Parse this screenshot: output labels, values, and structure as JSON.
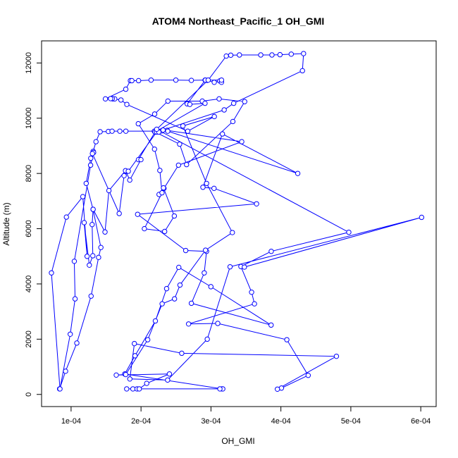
{
  "chart_data": {
    "type": "line",
    "title": "ATOM4 Northeast_Pacific_1 OH_GMI",
    "xlabel": "OH_GMI",
    "ylabel": "Altitude (m)",
    "xlim": [
      5.78e-05,
      0.000622
    ],
    "ylim": [
      -440,
      12800
    ],
    "x_ticks": [
      0.0001,
      0.0002,
      0.0003,
      0.0004,
      0.0005,
      0.0006
    ],
    "x_tick_labels": [
      "1e-04",
      "2e-04",
      "3e-04",
      "4e-04",
      "5e-04",
      "6e-04"
    ],
    "y_ticks": [
      0,
      2000,
      4000,
      6000,
      8000,
      10000,
      12000
    ],
    "y_tick_labels": [
      "0",
      "2000",
      "4000",
      "6000",
      "8000",
      "10000",
      "12000"
    ],
    "grid": false,
    "color": "#0000ff",
    "series": [
      {
        "points": [
          [
            8.36e-05,
            200
          ],
          [
            9.21e-05,
            840
          ],
          [
            0.0001082,
            1860
          ],
          [
            0.0001286,
            3560
          ],
          [
            0.0001393,
            4960
          ],
          [
            0.0001426,
            5320
          ],
          [
            0.0001314,
            6700
          ],
          [
            0.0001216,
            7640
          ],
          [
            0.0001281,
            8550
          ],
          [
            0.0001316,
            8800
          ],
          [
            0.0001356,
            9150
          ],
          [
            0.0001415,
            9510
          ],
          [
            0.0001533,
            9520
          ],
          [
            0.0001586,
            9530
          ],
          [
            0.0001697,
            9530
          ],
          [
            0.0001783,
            9530
          ],
          [
            0.000219,
            9530
          ],
          [
            0.0002297,
            9540
          ],
          [
            0.0002374,
            9560
          ],
          [
            0.000344,
            9150
          ],
          [
            0.0002536,
            8300
          ],
          [
            0.0002328,
            7460
          ],
          [
            0.0002258,
            7240
          ],
          [
            0.0002321,
            7480
          ],
          [
            0.0002476,
            6460
          ],
          [
            0.0002338,
            5900
          ],
          [
            0.0002048,
            6000
          ],
          [
            0.00023,
            7300
          ],
          [
            0.0002269,
            8110
          ],
          [
            0.0002193,
            8880
          ],
          [
            0.0001961,
            9800
          ],
          [
            0.0002195,
            10150
          ],
          [
            0.0002384,
            10620
          ],
          [
            0.0002876,
            10620
          ],
          [
            0.0003117,
            10700
          ],
          [
            0.0003482,
            10600
          ],
          [
            0.0003313,
            9880
          ],
          [
            0.0002651,
            8320
          ],
          [
            0.0002552,
            9060
          ],
          [
            0.0002202,
            9500
          ],
          [
            0.0002382,
            9530
          ],
          [
            0.0004241,
            8000
          ],
          [
            0.0003164,
            9430
          ],
          [
            0.0002885,
            7500
          ],
          [
            0.0003044,
            7460
          ],
          [
            0.0003652,
            6900
          ],
          [
            0.0001951,
            6520
          ],
          [
            0.0002639,
            5210
          ],
          [
            0.0002937,
            5180
          ],
          [
            0.0002904,
            4400
          ],
          [
            0.000272,
            3300
          ],
          [
            0.000386,
            2510
          ],
          [
            0.0002999,
            3900
          ],
          [
            0.000254,
            4600
          ],
          [
            0.0002366,
            3830
          ],
          [
            0.0002205,
            2660
          ],
          [
            0.0001914,
            1400
          ],
          [
            0.0001768,
            740
          ],
          [
            0.000316,
            200
          ],
          [
            0.0003169,
            200
          ],
          [
            0.0003128,
            200
          ],
          [
            0.0001795,
            200
          ],
          [
            0.0001884,
            200
          ],
          [
            0.0001943,
            200
          ],
          [
            0.0001975,
            200
          ],
          [
            0.0002081,
            400
          ],
          [
            0.0002406,
            740
          ],
          [
            0.0001646,
            700
          ],
          [
            0.0001781,
            720
          ],
          [
            0.0002096,
            1980
          ],
          [
            0.0002302,
            3280
          ],
          [
            0.0002479,
            3460
          ],
          [
            0.0002557,
            3960
          ],
          [
            0.0002922,
            5220
          ],
          [
            0.0003306,
            5860
          ],
          [
            0.0002937,
            7640
          ],
          [
            0.0002599,
            9720
          ],
          [
            0.0003048,
            10060
          ],
          [
            0.0002668,
            9530
          ],
          [
            0.0001797,
            10500
          ],
          [
            0.0001713,
            10660
          ],
          [
            0.0001596,
            10700
          ],
          [
            0.0001624,
            10700
          ],
          [
            0.0001589,
            10710
          ],
          [
            0.0001565,
            10710
          ],
          [
            0.0001491,
            10700
          ],
          [
            0.0001782,
            11050
          ],
          [
            0.0001848,
            11360
          ],
          [
            0.0001869,
            11360
          ],
          [
            0.0001965,
            11360
          ],
          [
            0.0002144,
            11380
          ],
          [
            0.0002498,
            11380
          ],
          [
            0.000272,
            11370
          ],
          [
            0.0002916,
            11380
          ],
          [
            0.0002946,
            11370
          ],
          [
            0.0003047,
            11300
          ],
          [
            0.0003126,
            11350
          ],
          [
            0.0003151,
            11300
          ],
          [
            0.0003151,
            11380
          ],
          [
            0.000292,
            11380
          ],
          [
            0.000266,
            10520
          ],
          [
            0.0002698,
            10500
          ],
          [
            0.0002915,
            10540
          ],
          [
            0.0002201,
            9500
          ],
          [
            0.0001963,
            8500
          ],
          [
            0.0001999,
            8500
          ],
          [
            0.0001839,
            7760
          ],
          [
            0.0001778,
            8100
          ],
          [
            0.0001541,
            7380
          ],
          [
            0.0001485,
            5880
          ],
          [
            0.0001315,
            6700
          ],
          [
            0.0001301,
            6150
          ],
          [
            0.0001311,
            5020
          ],
          [
            0.0001261,
            4680
          ],
          [
            0.0001187,
            6220
          ],
          [
            0.0001229,
            5000
          ],
          [
            0.0001168,
            7160
          ],
          [
            9.33e-05,
            6420
          ],
          [
            7.19e-05,
            4400
          ],
          [
            8.41e-05,
            200
          ],
          [
            9.88e-05,
            2180
          ],
          [
            0.0001057,
            3460
          ],
          [
            0.0001046,
            4820
          ],
          [
            0.0001279,
            8300
          ],
          [
            0.0001322,
            8760
          ],
          [
            0.0001305,
            8720
          ],
          [
            0.0001688,
            6550
          ],
          [
            0.0001758,
            7920
          ],
          [
            0.0001818,
            8080
          ],
          [
            0.0002224,
            9500
          ],
          [
            0.0002254,
            9500
          ],
          [
            0.0002315,
            9570
          ],
          [
            0.0003189,
            10300
          ],
          [
            0.0003325,
            10540
          ],
          [
            0.0004308,
            11720
          ],
          [
            0.0004324,
            12340
          ],
          [
            0.0004148,
            12320
          ],
          [
            0.0003987,
            12300
          ],
          [
            0.0003872,
            12290
          ],
          [
            0.0003712,
            12290
          ],
          [
            0.0003407,
            12290
          ],
          [
            0.0003283,
            12280
          ],
          [
            0.0003219,
            12250
          ],
          [
            0.000296,
            11380
          ],
          [
            0.0002224,
            9600
          ],
          [
            0.0004971,
            5870
          ],
          [
            0.0003862,
            5180
          ],
          [
            0.0003428,
            4630
          ],
          [
            0.0003581,
            3700
          ],
          [
            0.0003622,
            3280
          ],
          [
            0.000268,
            2550
          ],
          [
            0.0003097,
            2570
          ],
          [
            0.0004085,
            1980
          ],
          [
            0.000439,
            690
          ],
          [
            0.0004008,
            230
          ],
          [
            0.000395,
            190
          ],
          [
            0.0004794,
            1380
          ],
          [
            0.0002582,
            1490
          ],
          [
            0.0001905,
            1840
          ],
          [
            0.000184,
            560
          ],
          [
            0.000238,
            520
          ],
          [
            0.0002947,
            2000
          ],
          [
            0.0003273,
            4620
          ],
          [
            0.0006012,
            6410
          ],
          [
            0.0003478,
            4610
          ]
        ]
      }
    ]
  }
}
